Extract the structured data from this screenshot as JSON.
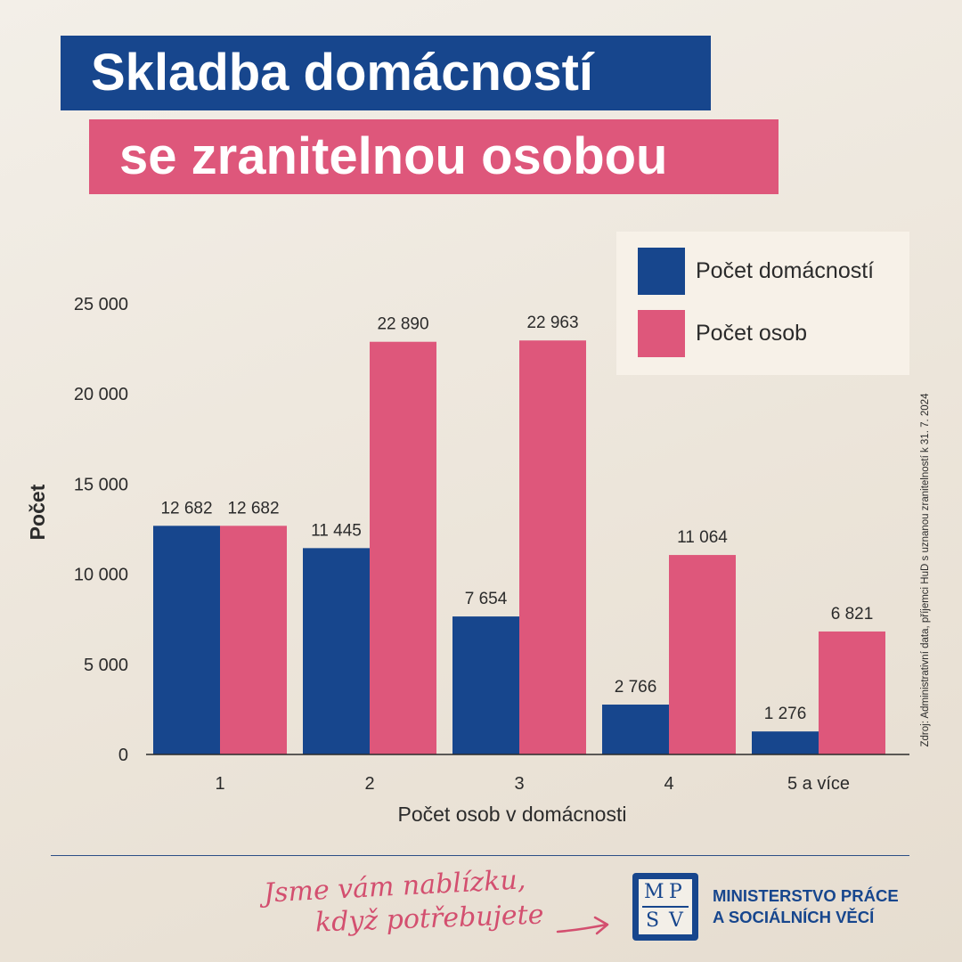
{
  "header": {
    "title_line_1": "Skladba domácností",
    "title_line_2": "se zranitelnou osobou"
  },
  "colors": {
    "blue": "#17468d",
    "pink": "#de577b"
  },
  "legend": {
    "items": [
      {
        "label": "Počet domácností",
        "color": "#17468d"
      },
      {
        "label": "Počet osob",
        "color": "#de577b"
      }
    ]
  },
  "chart_data": {
    "type": "bar",
    "title": "Skladba domácností se zranitelnou osobou",
    "xlabel": "Počet osob v domácnosti",
    "ylabel": "Počet",
    "categories": [
      "1",
      "2",
      "3",
      "4",
      "5 a více"
    ],
    "series": [
      {
        "name": "Počet domácností",
        "color": "#17468d",
        "values": [
          12682,
          11445,
          7654,
          2766,
          1276
        ],
        "labels": [
          "12 682",
          "11 445",
          "7 654",
          "2 766",
          "1 276"
        ]
      },
      {
        "name": "Počet osob",
        "color": "#de577b",
        "values": [
          12682,
          22890,
          22963,
          11064,
          6821
        ],
        "labels": [
          "12 682",
          "22 890",
          "22 963",
          "11 064",
          "6 821"
        ]
      }
    ],
    "ylim": [
      0,
      25000
    ],
    "yticks": [
      0,
      5000,
      10000,
      15000,
      20000,
      25000
    ],
    "ytick_labels": [
      "0",
      "5 000",
      "10 000",
      "15 000",
      "20 000",
      "25 000"
    ],
    "grid": false,
    "legend_position": "top-right"
  },
  "source": "Zdroj: Administrativní data, příjemci HuD s uznanou zranitelností k 31. 7. 2024",
  "footer": {
    "slogan_line_1": "Jsme vám nablízku,",
    "slogan_line_2": "když potřebujete",
    "logo_letters": [
      "M",
      "P",
      "S",
      "V"
    ],
    "ministry_line_1": "MINISTERSTVO PRÁCE",
    "ministry_line_2": "A SOCIÁLNÍCH VĚCÍ"
  }
}
